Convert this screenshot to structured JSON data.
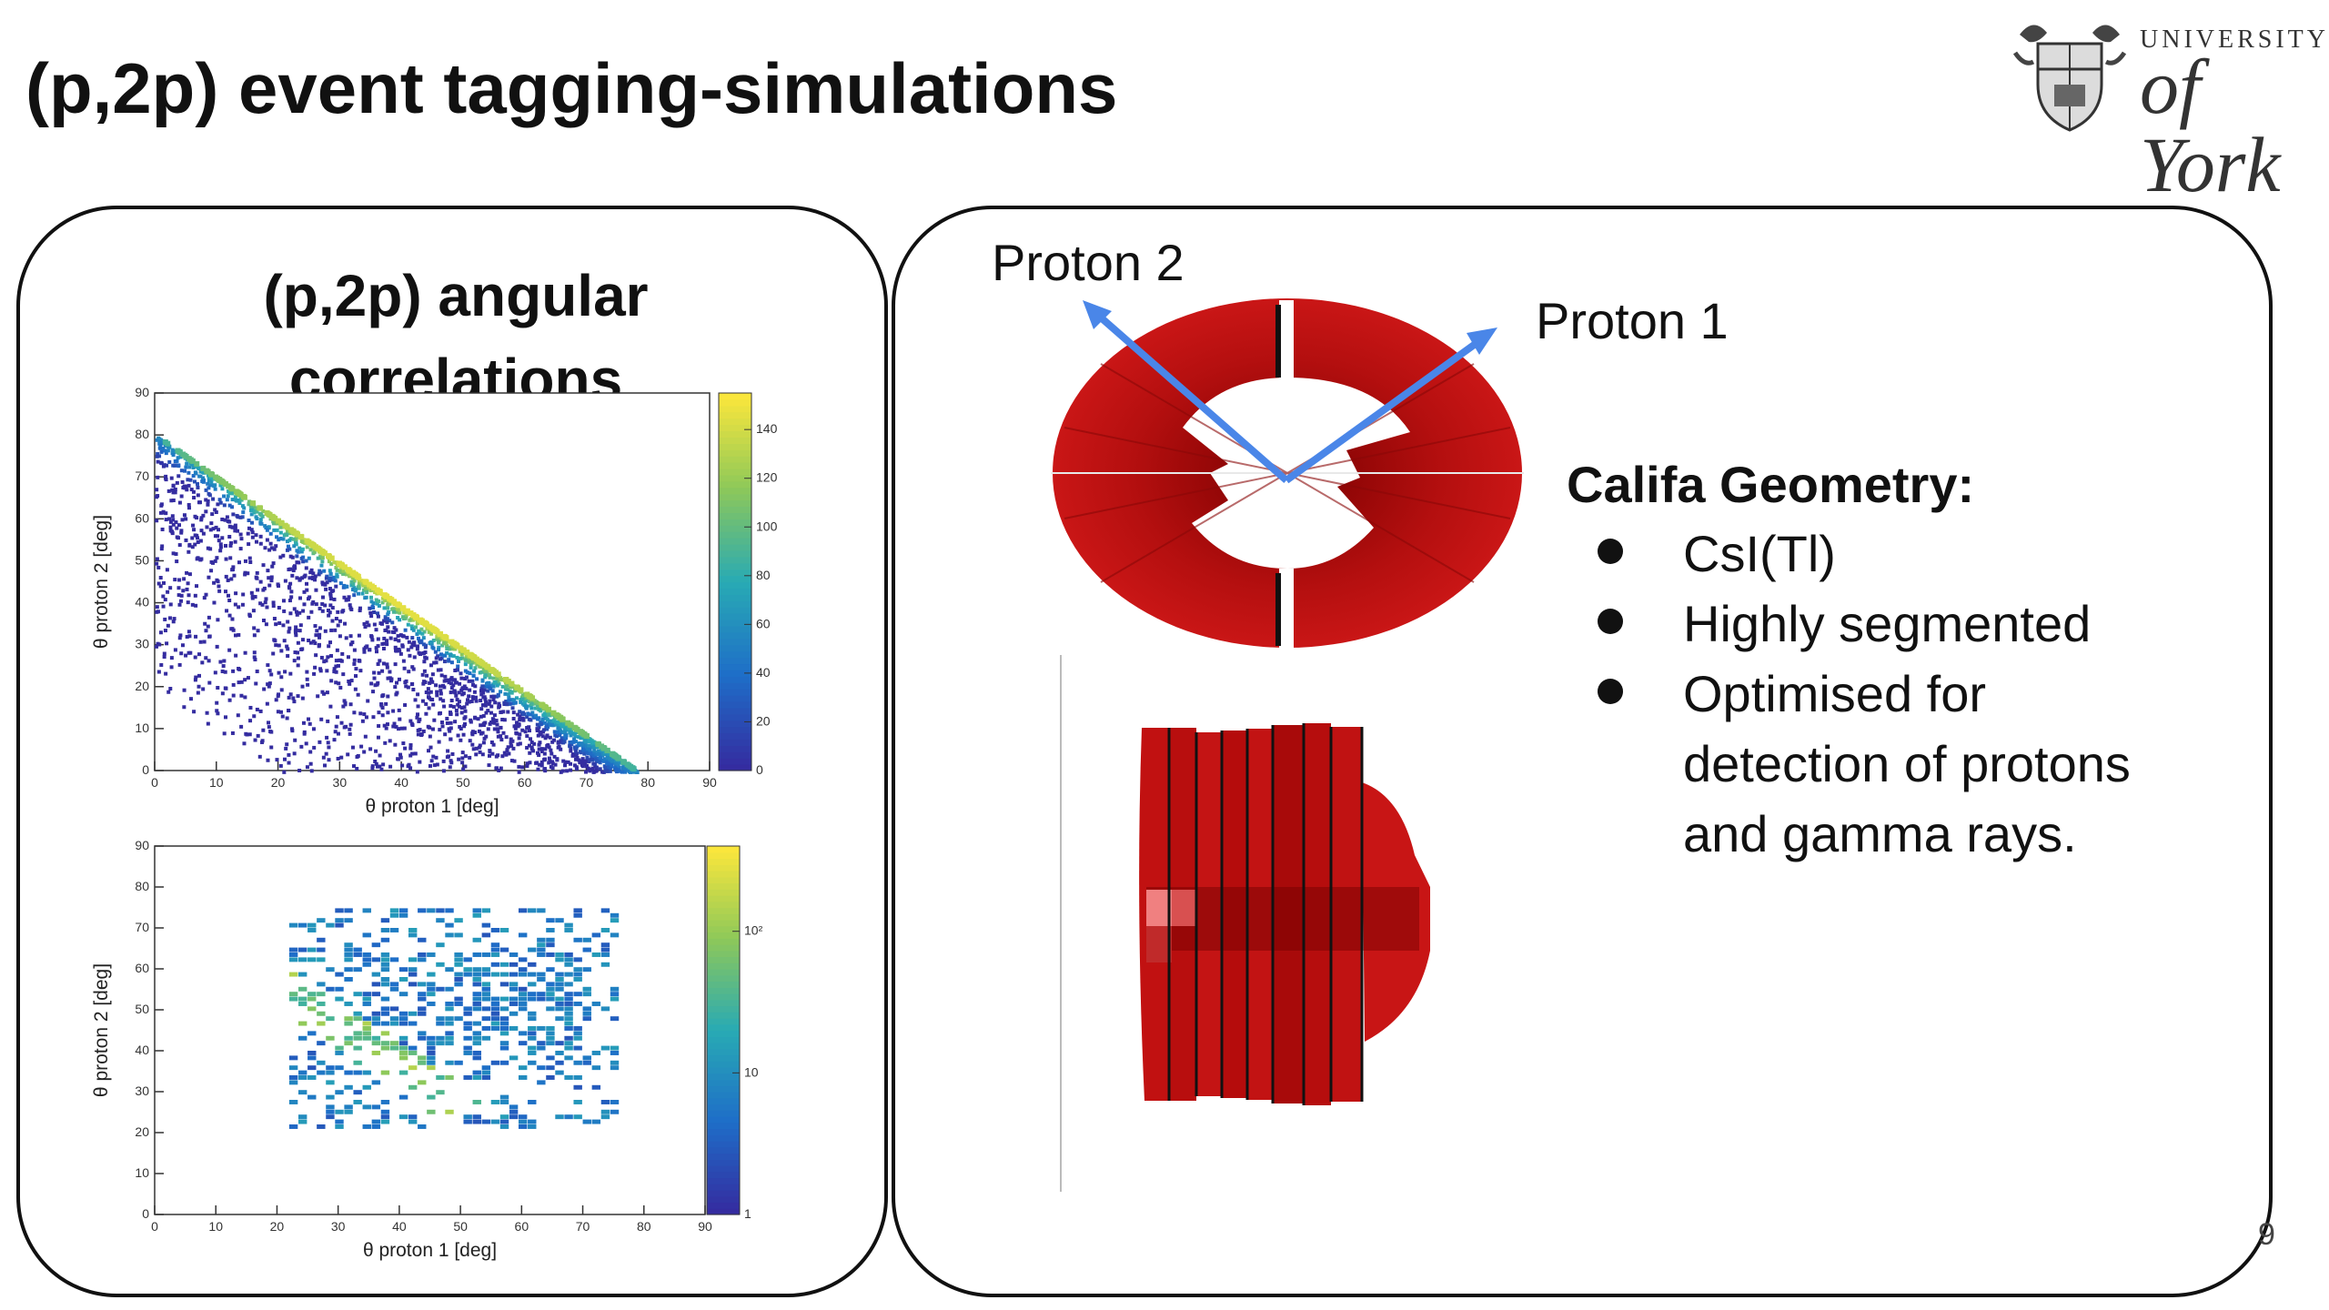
{
  "slide": {
    "title": "(p,2p) event tagging-simulations",
    "page_number": "9"
  },
  "logo": {
    "line1": "UNIVERSITY",
    "line2": "of York"
  },
  "left_panel": {
    "heading_line1": "(p,2p) angular",
    "heading_line2": "correlations"
  },
  "right_panel": {
    "proton2_label": "Proton 2",
    "proton1_label": "Proton 1",
    "califa_title": "Califa Geometry:",
    "bullets": [
      "CsI(Tl)",
      "Highly segmented",
      "Optimised for detection of protons and gamma rays."
    ],
    "arrow_color": "#4a86e8",
    "detector_color": "#c0100f"
  },
  "chart_data": [
    {
      "type": "heatmap",
      "title": "",
      "xlabel": "θ proton 1  [deg]",
      "ylabel": "θ proton 2 [deg]",
      "xlim": [
        0,
        90
      ],
      "ylim": [
        0,
        90
      ],
      "x_ticks": [
        "0",
        "10",
        "20",
        "30",
        "40",
        "50",
        "60",
        "70",
        "80",
        "90"
      ],
      "y_ticks": [
        "0",
        "10",
        "20",
        "30",
        "40",
        "50",
        "60",
        "70",
        "80",
        "90"
      ],
      "colorbar_ticks": [
        "0",
        "20",
        "40",
        "60",
        "80",
        "100",
        "120",
        "140"
      ],
      "colorbar_range": [
        0,
        155
      ],
      "colorbar_scale": "linear",
      "description_points": [
        {
          "x": 0,
          "y": 80
        },
        {
          "x": 78,
          "y": 2
        }
      ]
    },
    {
      "type": "heatmap",
      "title": "",
      "xlabel": "θ proton 1 [deg]",
      "ylabel": "θ proton 2 [deg]",
      "xlim": [
        0,
        90
      ],
      "ylim": [
        0,
        90
      ],
      "x_ticks": [
        "0",
        "10",
        "20",
        "30",
        "40",
        "50",
        "60",
        "70",
        "80",
        "90"
      ],
      "y_ticks": [
        "0",
        "10",
        "20",
        "30",
        "40",
        "50",
        "60",
        "70",
        "80",
        "90"
      ],
      "colorbar_ticks": [
        "1",
        "10",
        "10²"
      ],
      "colorbar_scale": "log",
      "x_range_filled": [
        22,
        75
      ],
      "y_range_filled": [
        22,
        75
      ]
    }
  ]
}
